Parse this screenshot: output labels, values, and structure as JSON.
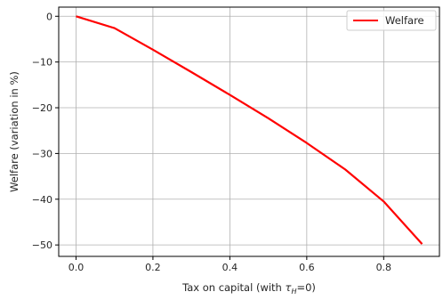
{
  "chart_data": {
    "type": "line",
    "xlabel_prefix": "Tax on capital (with ",
    "xlabel_symbol": "τ",
    "xlabel_subscript": "H",
    "xlabel_suffix": "=0)",
    "ylabel": "Welfare (variation in %)",
    "xlim": [
      -0.045,
      0.945
    ],
    "ylim": [
      -52.5,
      2.0
    ],
    "grid": true,
    "legend_position": "top-right",
    "x_ticks": [
      0.0,
      0.2,
      0.4,
      0.6,
      0.8
    ],
    "x_tick_labels": [
      "0.0",
      "0.2",
      "0.4",
      "0.6",
      "0.8"
    ],
    "y_ticks": [
      0,
      -10,
      -20,
      -30,
      -40,
      -50
    ],
    "y_tick_labels": [
      "0",
      "−10",
      "−20",
      "−30",
      "−40",
      "−50"
    ],
    "series": [
      {
        "name": "Welfare",
        "color": "#ff0000",
        "x": [
          0.0,
          0.1,
          0.2,
          0.3,
          0.4,
          0.5,
          0.6,
          0.7,
          0.8,
          0.9
        ],
        "y": [
          0.0,
          -2.6,
          -7.3,
          -12.2,
          -17.2,
          -22.3,
          -27.7,
          -33.5,
          -40.5,
          -49.8
        ]
      }
    ]
  }
}
